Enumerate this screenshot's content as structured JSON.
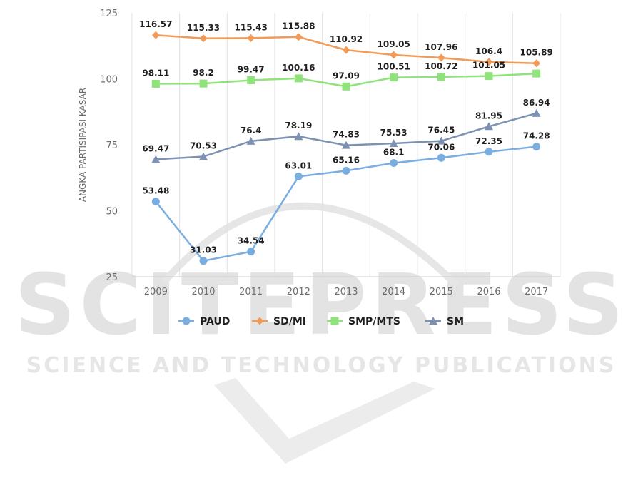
{
  "watermark": {
    "brand": "SCITEPRESS",
    "tagline": "SCIENCE AND TECHNOLOGY PUBLICATIONS"
  },
  "chart_data": {
    "type": "line",
    "title": "",
    "xlabel": "",
    "ylabel": "ANGKA PARTISIPASI KASAR",
    "ylim": [
      25,
      125
    ],
    "yticks": [
      25,
      50,
      75,
      100,
      125
    ],
    "categories": [
      "2009",
      "2010",
      "2011",
      "2012",
      "2013",
      "2014",
      "2015",
      "2016",
      "2017"
    ],
    "grid": "vertical",
    "legend_position": "bottom",
    "series": [
      {
        "name": "PAUD",
        "color": "#7aaee0",
        "marker": "circle",
        "values": [
          53.48,
          31.03,
          34.54,
          63.01,
          65.16,
          68.1,
          70.06,
          72.35,
          74.28
        ],
        "labels": [
          "53.48",
          "31.03",
          "34.54",
          "63.01",
          "65.16",
          "68.1",
          "70.06",
          "72.35",
          "74.28"
        ]
      },
      {
        "name": "SD/MI",
        "color": "#f29b58",
        "marker": "diamond",
        "values": [
          116.57,
          115.33,
          115.43,
          115.88,
          110.92,
          109.05,
          107.96,
          106.4,
          105.89
        ],
        "labels": [
          "116.57",
          "115.33",
          "115.43",
          "115.88",
          "110.92",
          "109.05",
          "107.96",
          "106.4",
          "105.89"
        ]
      },
      {
        "name": "SMP/MTS",
        "color": "#8fe37a",
        "marker": "square",
        "values": [
          98.11,
          98.2,
          99.47,
          100.16,
          97.09,
          100.51,
          100.72,
          101.05,
          102.0
        ],
        "labels": [
          "98.11",
          "98.2",
          "99.47",
          "100.16",
          "97.09",
          "100.51",
          "100.72",
          "101.05",
          ""
        ]
      },
      {
        "name": "SM",
        "color": "#7d92b3",
        "marker": "triangle",
        "values": [
          69.47,
          70.53,
          76.4,
          78.19,
          74.83,
          75.53,
          76.45,
          81.95,
          86.94
        ],
        "labels": [
          "69.47",
          "70.53",
          "76.4",
          "78.19",
          "74.83",
          "75.53",
          "76.45",
          "81.95",
          "86.94"
        ]
      }
    ]
  }
}
